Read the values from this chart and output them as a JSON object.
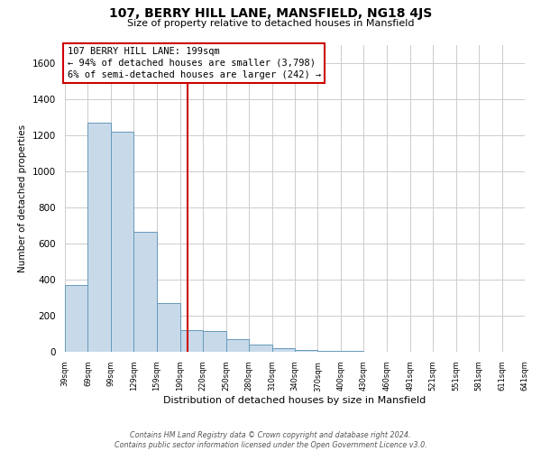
{
  "title": "107, BERRY HILL LANE, MANSFIELD, NG18 4JS",
  "subtitle": "Size of property relative to detached houses in Mansfield",
  "xlabel": "Distribution of detached houses by size in Mansfield",
  "ylabel": "Number of detached properties",
  "bar_color": "#c8daea",
  "bar_edge_color": "#6699bb",
  "bins": [
    39,
    69,
    99,
    129,
    159,
    190,
    220,
    250,
    280,
    310,
    340,
    370,
    400,
    430,
    460,
    491,
    521,
    551,
    581,
    611,
    641
  ],
  "tick_labels": [
    "39sqm",
    "69sqm",
    "99sqm",
    "129sqm",
    "159sqm",
    "190sqm",
    "220sqm",
    "250sqm",
    "280sqm",
    "310sqm",
    "340sqm",
    "370sqm",
    "400sqm",
    "430sqm",
    "460sqm",
    "491sqm",
    "521sqm",
    "551sqm",
    "581sqm",
    "611sqm",
    "641sqm"
  ],
  "values": [
    370,
    1270,
    1220,
    665,
    270,
    120,
    115,
    70,
    38,
    20,
    10,
    5,
    3,
    0,
    0,
    2,
    0,
    0,
    0,
    0
  ],
  "ylim": [
    0,
    1700
  ],
  "yticks": [
    0,
    200,
    400,
    600,
    800,
    1000,
    1200,
    1400,
    1600
  ],
  "vline_x": 199,
  "vline_color": "#cc0000",
  "annotation_line1": "107 BERRY HILL LANE: 199sqm",
  "annotation_line2": "← 94% of detached houses are smaller (3,798)",
  "annotation_line3": "6% of semi-detached houses are larger (242) →",
  "footer_text": "Contains HM Land Registry data © Crown copyright and database right 2024.\nContains public sector information licensed under the Open Government Licence v3.0.",
  "background_color": "#ffffff",
  "grid_color": "#cccccc"
}
